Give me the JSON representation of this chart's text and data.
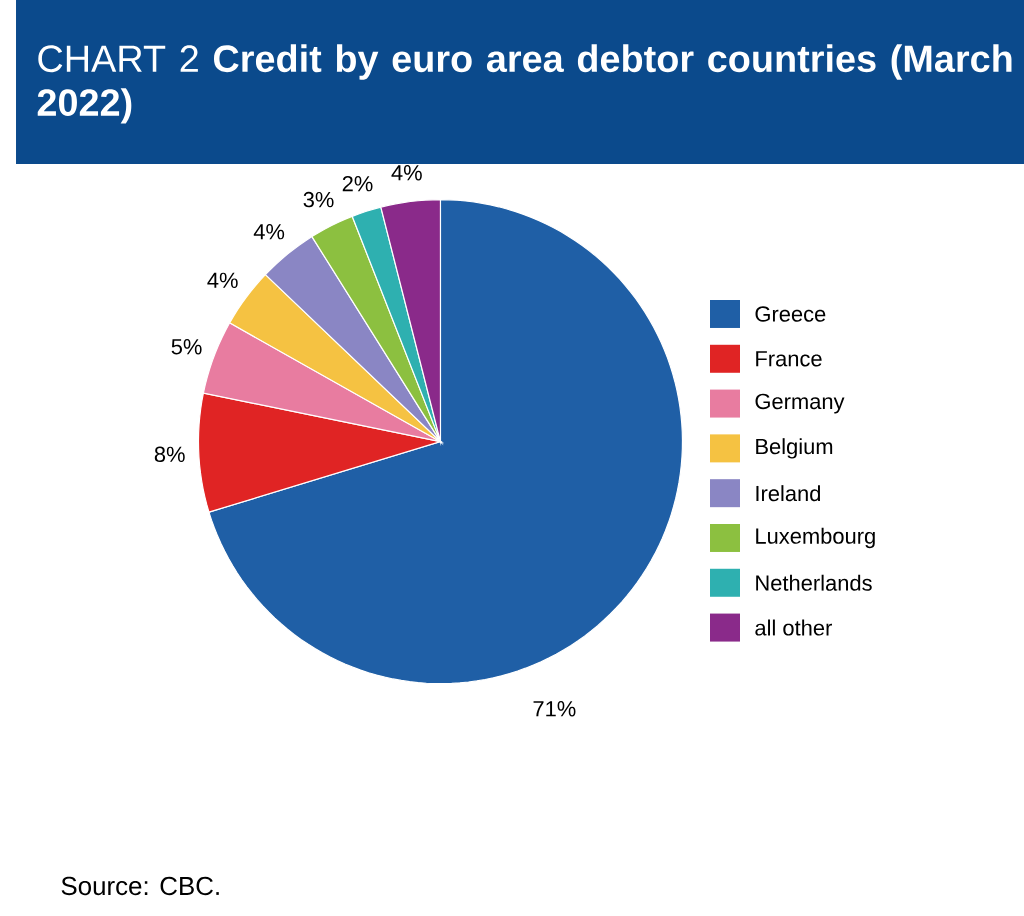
{
  "chart_data": {
    "type": "pie",
    "title": "CHART 2 **Credit by euro area debtor countries (March 2022)**",
    "categories": [
      "Greece",
      "France",
      "Germany",
      "Belgium",
      "Ireland",
      "Luxembourg",
      "Netherlands",
      "all other"
    ],
    "values": [
      71,
      8,
      5,
      4,
      4,
      3,
      2,
      4
    ],
    "value_labels": [
      "71%",
      "8%",
      "5%",
      "4%",
      "4%",
      "3%",
      "2%",
      "4%"
    ],
    "colors": [
      "#1f5fa6",
      "#e02424",
      "#e87ca0",
      "#f5c242",
      "#8a86c4",
      "#8cc040",
      "#2eb0b0",
      "#8a2a8a"
    ],
    "legend": "right",
    "annotations": [
      "Source: CBC."
    ]
  }
}
